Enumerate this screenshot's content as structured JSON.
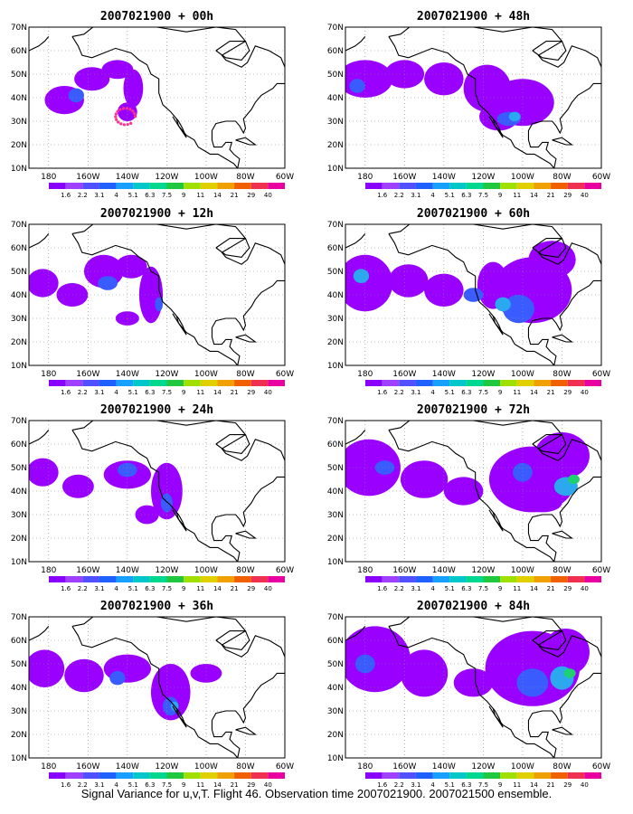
{
  "panels": [
    {
      "title": "2007021900 + 00h"
    },
    {
      "title": "2007021900 + 48h"
    },
    {
      "title": "2007021900 + 12h"
    },
    {
      "title": "2007021900 + 60h"
    },
    {
      "title": "2007021900 + 24h"
    },
    {
      "title": "2007021900 + 72h"
    },
    {
      "title": "2007021900 + 36h"
    },
    {
      "title": "2007021900 + 84h"
    }
  ],
  "map": {
    "lat_labels": [
      "10N",
      "20N",
      "30N",
      "40N",
      "50N",
      "60N",
      "70N"
    ],
    "lon_labels": [
      "180",
      "160W",
      "140W",
      "120W",
      "100W",
      "80W",
      "60W"
    ],
    "lat_range": [
      10,
      70
    ],
    "lon_range": [
      -190,
      -60
    ]
  },
  "colorbar": {
    "labels": [
      "1.6",
      "2.2",
      "3.1",
      "4",
      "5.1",
      "6.3",
      "7.5",
      "9",
      "11",
      "14",
      "21",
      "29",
      "40"
    ],
    "colors": [
      "#8a00ff",
      "#a040ff",
      "#5050ff",
      "#2060ff",
      "#18a0ff",
      "#00c8c8",
      "#00d890",
      "#20c840",
      "#a0e000",
      "#e0d000",
      "#f0a000",
      "#f06000",
      "#f03050",
      "#e800a0"
    ]
  },
  "shading_levels": {
    "purple": "#9a00ff",
    "blue": "#3a5cff",
    "cyan": "#2aa8f0",
    "green": "#20d070"
  },
  "footer": "Signal Variance for u,v,T. Flight 46. Observation time 2007021900. 2007021500 ensemble."
}
